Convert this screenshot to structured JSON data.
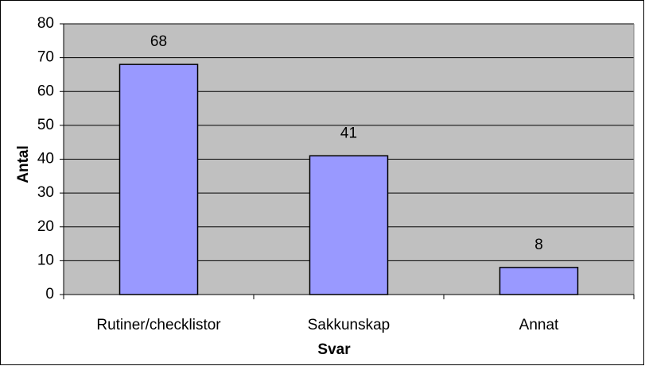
{
  "chart_data": {
    "type": "bar",
    "categories": [
      "Rutiner/checklistor",
      "Sakkunskap",
      "Annat"
    ],
    "values": [
      68,
      41,
      8
    ],
    "color": "#9999ff",
    "ylim": [
      0,
      80
    ],
    "yticks": [
      0,
      10,
      20,
      30,
      40,
      50,
      60,
      70,
      80
    ],
    "grid": true,
    "plot_background": "#c0c0c0",
    "xlabel": "Svar",
    "ylabel": "Antal"
  }
}
